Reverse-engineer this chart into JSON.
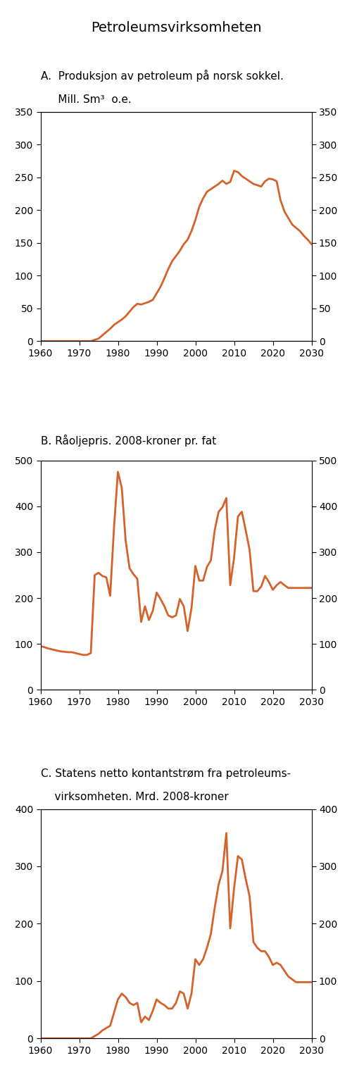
{
  "title": "Petroleumsvirksomheten",
  "line_color": "#d4622a",
  "panel_a": {
    "label_line1": "A.  Produksjon av petroleum på norsk sokkel.",
    "label_line2": "     Mill. Sm³  o.e.",
    "ylim": [
      0,
      350
    ],
    "yticks": [
      0,
      50,
      100,
      150,
      200,
      250,
      300,
      350
    ],
    "xlim": [
      1960,
      2030
    ],
    "xticks": [
      1960,
      1970,
      1980,
      1990,
      2000,
      2010,
      2020,
      2030
    ],
    "years": [
      1960,
      1966,
      1968,
      1970,
      1971,
      1972,
      1973,
      1974,
      1975,
      1976,
      1977,
      1978,
      1979,
      1980,
      1981,
      1982,
      1983,
      1984,
      1985,
      1986,
      1987,
      1988,
      1989,
      1990,
      1991,
      1992,
      1993,
      1994,
      1995,
      1996,
      1997,
      1998,
      1999,
      2000,
      2001,
      2002,
      2003,
      2004,
      2005,
      2006,
      2007,
      2008,
      2009,
      2010,
      2011,
      2012,
      2013,
      2014,
      2015,
      2016,
      2017,
      2018,
      2019,
      2020,
      2021,
      2022,
      2023,
      2024,
      2025,
      2026,
      2027,
      2028,
      2029,
      2030
    ],
    "values": [
      0,
      0,
      0,
      0,
      0,
      0,
      0,
      2,
      4,
      9,
      14,
      19,
      25,
      29,
      33,
      38,
      45,
      52,
      57,
      56,
      58,
      60,
      63,
      73,
      83,
      96,
      110,
      122,
      130,
      138,
      148,
      155,
      168,
      185,
      205,
      218,
      228,
      232,
      236,
      240,
      245,
      240,
      243,
      260,
      258,
      252,
      248,
      244,
      240,
      238,
      236,
      244,
      248,
      247,
      244,
      215,
      198,
      188,
      178,
      173,
      168,
      161,
      155,
      148
    ]
  },
  "panel_b": {
    "label_line1": "B. Råoljepris. 2008-kroner pr. fat",
    "label_line2": "",
    "ylim": [
      0,
      500
    ],
    "yticks": [
      0,
      100,
      200,
      300,
      400,
      500
    ],
    "xlim": [
      1960,
      2030
    ],
    "xticks": [
      1960,
      1970,
      1980,
      1990,
      2000,
      2010,
      2020,
      2030
    ],
    "years": [
      1960,
      1961,
      1962,
      1963,
      1964,
      1965,
      1966,
      1967,
      1968,
      1969,
      1970,
      1971,
      1972,
      1973,
      1974,
      1975,
      1976,
      1977,
      1978,
      1979,
      1980,
      1981,
      1982,
      1983,
      1984,
      1985,
      1986,
      1987,
      1988,
      1989,
      1990,
      1991,
      1992,
      1993,
      1994,
      1995,
      1996,
      1997,
      1998,
      1999,
      2000,
      2001,
      2002,
      2003,
      2004,
      2005,
      2006,
      2007,
      2008,
      2009,
      2010,
      2011,
      2012,
      2013,
      2014,
      2015,
      2016,
      2017,
      2018,
      2019,
      2020,
      2021,
      2022,
      2023,
      2024,
      2025,
      2026,
      2027,
      2028,
      2029,
      2030
    ],
    "values": [
      95,
      93,
      90,
      88,
      86,
      84,
      83,
      82,
      82,
      80,
      78,
      76,
      76,
      80,
      250,
      255,
      248,
      245,
      205,
      355,
      475,
      440,
      325,
      265,
      252,
      242,
      148,
      182,
      152,
      172,
      212,
      198,
      182,
      162,
      158,
      162,
      198,
      182,
      128,
      178,
      270,
      238,
      238,
      268,
      282,
      348,
      388,
      398,
      418,
      228,
      288,
      378,
      388,
      348,
      305,
      215,
      215,
      225,
      248,
      235,
      218,
      228,
      235,
      228,
      222,
      222,
      222,
      222,
      222,
      222,
      222
    ]
  },
  "panel_c": {
    "label_line1": "C. Statens netto kontantstrøm fra petroleums-",
    "label_line2": "    virksomheten. Mrd. 2008-kroner",
    "ylim": [
      0,
      400
    ],
    "yticks": [
      0,
      100,
      200,
      300,
      400
    ],
    "xlim": [
      1960,
      2030
    ],
    "xticks": [
      1960,
      1970,
      1980,
      1990,
      2000,
      2010,
      2020,
      2030
    ],
    "years": [
      1960,
      1961,
      1962,
      1963,
      1964,
      1965,
      1966,
      1967,
      1968,
      1969,
      1970,
      1971,
      1972,
      1973,
      1974,
      1975,
      1976,
      1977,
      1978,
      1979,
      1980,
      1981,
      1982,
      1983,
      1984,
      1985,
      1986,
      1987,
      1988,
      1989,
      1990,
      1991,
      1992,
      1993,
      1994,
      1995,
      1996,
      1997,
      1998,
      1999,
      2000,
      2001,
      2002,
      2003,
      2004,
      2005,
      2006,
      2007,
      2008,
      2009,
      2010,
      2011,
      2012,
      2013,
      2014,
      2015,
      2016,
      2017,
      2018,
      2019,
      2020,
      2021,
      2022,
      2023,
      2024,
      2025,
      2026,
      2027,
      2028,
      2029,
      2030
    ],
    "values": [
      0,
      0,
      0,
      0,
      0,
      0,
      0,
      0,
      0,
      0,
      0,
      0,
      0,
      0,
      4,
      8,
      14,
      18,
      22,
      45,
      68,
      78,
      72,
      62,
      58,
      62,
      28,
      38,
      32,
      48,
      68,
      62,
      58,
      52,
      52,
      62,
      82,
      78,
      52,
      78,
      138,
      128,
      138,
      158,
      182,
      228,
      268,
      292,
      358,
      192,
      262,
      318,
      312,
      278,
      248,
      168,
      158,
      152,
      152,
      142,
      128,
      132,
      128,
      118,
      108,
      103,
      98,
      98,
      98,
      98,
      98
    ]
  },
  "bg_color": "#ffffff",
  "spine_color": "#000000",
  "tick_label_size": 10,
  "title_fontsize": 14,
  "label_fontsize": 11
}
